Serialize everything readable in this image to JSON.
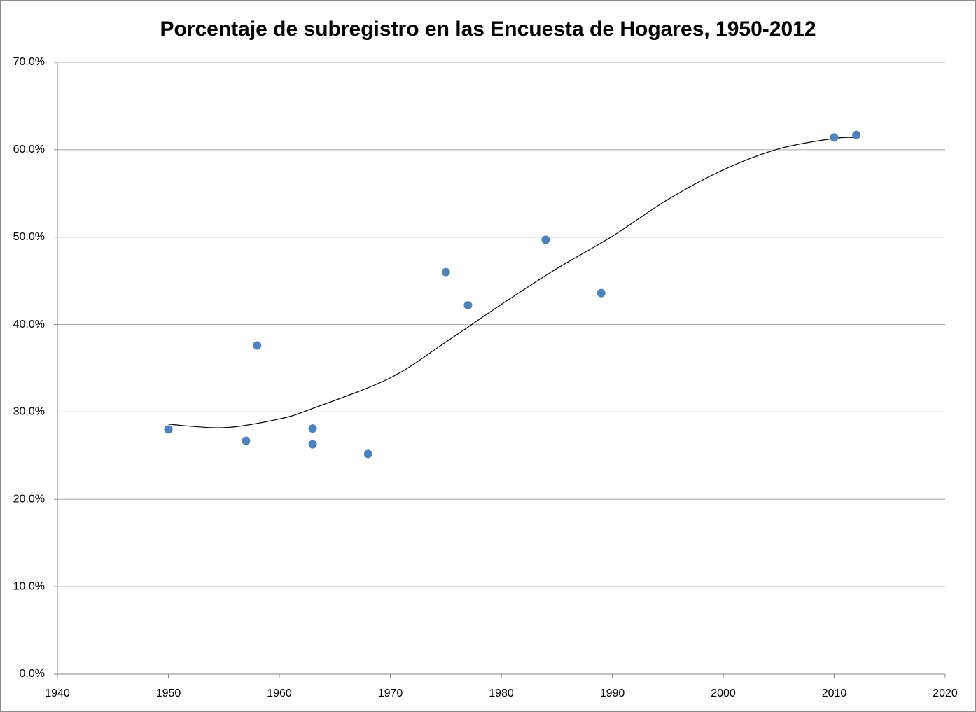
{
  "chart_data": {
    "type": "scatter",
    "title": "Porcentaje de subregistro en las Encuesta de Hogares, 1950-2012",
    "x": [
      1950,
      1957,
      1958,
      1963,
      1963,
      1968,
      1975,
      1977,
      1984,
      1989,
      2010,
      2012
    ],
    "values": [
      28.0,
      26.7,
      37.6,
      28.1,
      26.3,
      25.2,
      46.0,
      42.2,
      49.7,
      43.6,
      61.4,
      61.7
    ],
    "color": "#4f81bd",
    "trendline": {
      "x": [
        1950,
        1955,
        1960,
        1963,
        1970,
        1975,
        1980,
        1985,
        1990,
        1995,
        2000,
        2005,
        2010,
        2012
      ],
      "y": [
        28.6,
        28.2,
        29.2,
        30.4,
        33.9,
        38.0,
        42.3,
        46.4,
        50.1,
        54.3,
        57.7,
        60.1,
        61.3,
        61.4
      ],
      "color": "#000000"
    },
    "xlim": [
      1940,
      2020
    ],
    "xticks": [
      1940,
      1950,
      1960,
      1970,
      1980,
      1990,
      2000,
      2010,
      2020
    ],
    "ylim": [
      0,
      70
    ],
    "yticks": [
      {
        "value": 0,
        "label": "0.0%"
      },
      {
        "value": 10,
        "label": "10.0%"
      },
      {
        "value": 20,
        "label": "20.0%"
      },
      {
        "value": 30,
        "label": "30.0%"
      },
      {
        "value": 40,
        "label": "40.0%"
      },
      {
        "value": 50,
        "label": "50.0%"
      },
      {
        "value": 60,
        "label": "60.0%"
      },
      {
        "value": 70,
        "label": "70.0%"
      }
    ],
    "grid": true
  }
}
